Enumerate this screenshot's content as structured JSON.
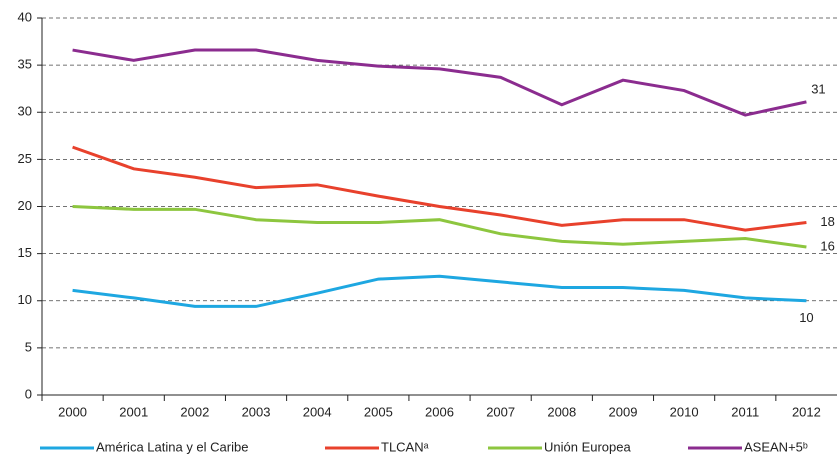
{
  "chart_data": {
    "type": "line",
    "categories": [
      "2000",
      "2001",
      "2002",
      "2003",
      "2004",
      "2005",
      "2006",
      "2007",
      "2008",
      "2009",
      "2010",
      "2011",
      "2012"
    ],
    "series": [
      {
        "name": "América Latina y el Caribe",
        "color": "#1ea7e1",
        "values": [
          11.1,
          10.3,
          9.4,
          9.4,
          10.8,
          12.3,
          12.6,
          12.0,
          11.4,
          11.4,
          11.1,
          10.3,
          10.0
        ],
        "value_labels": [
          null,
          null,
          null,
          null,
          null,
          null,
          null,
          null,
          null,
          null,
          null,
          null,
          "10"
        ]
      },
      {
        "name": "TLCANᵃ",
        "color": "#e8412c",
        "values": [
          26.3,
          24.0,
          23.1,
          22.0,
          22.3,
          21.1,
          20.0,
          19.1,
          18.0,
          18.6,
          18.6,
          17.5,
          18.3
        ],
        "value_labels": [
          null,
          null,
          null,
          null,
          null,
          null,
          null,
          null,
          null,
          null,
          null,
          null,
          "18"
        ]
      },
      {
        "name": "Unión Europea",
        "color": "#8dc63f",
        "values": [
          20.0,
          19.7,
          19.7,
          18.6,
          18.3,
          18.3,
          18.6,
          17.1,
          16.3,
          16.0,
          16.3,
          16.6,
          15.7
        ],
        "value_labels": [
          null,
          null,
          null,
          null,
          null,
          null,
          null,
          null,
          null,
          null,
          null,
          null,
          "16"
        ]
      },
      {
        "name": "ASEAN+5ᵇ",
        "color": "#8b2c8f",
        "values": [
          36.6,
          35.5,
          36.6,
          36.6,
          35.5,
          34.9,
          34.6,
          33.7,
          30.8,
          33.4,
          32.3,
          29.7,
          31.1
        ],
        "value_labels": [
          null,
          null,
          null,
          null,
          null,
          null,
          null,
          null,
          null,
          null,
          null,
          null,
          "31"
        ]
      }
    ],
    "ylim": [
      0,
      40
    ],
    "yticks": [
      0,
      5,
      10,
      15,
      20,
      25,
      30,
      35,
      40
    ],
    "grid": true,
    "legend": "bottom"
  }
}
